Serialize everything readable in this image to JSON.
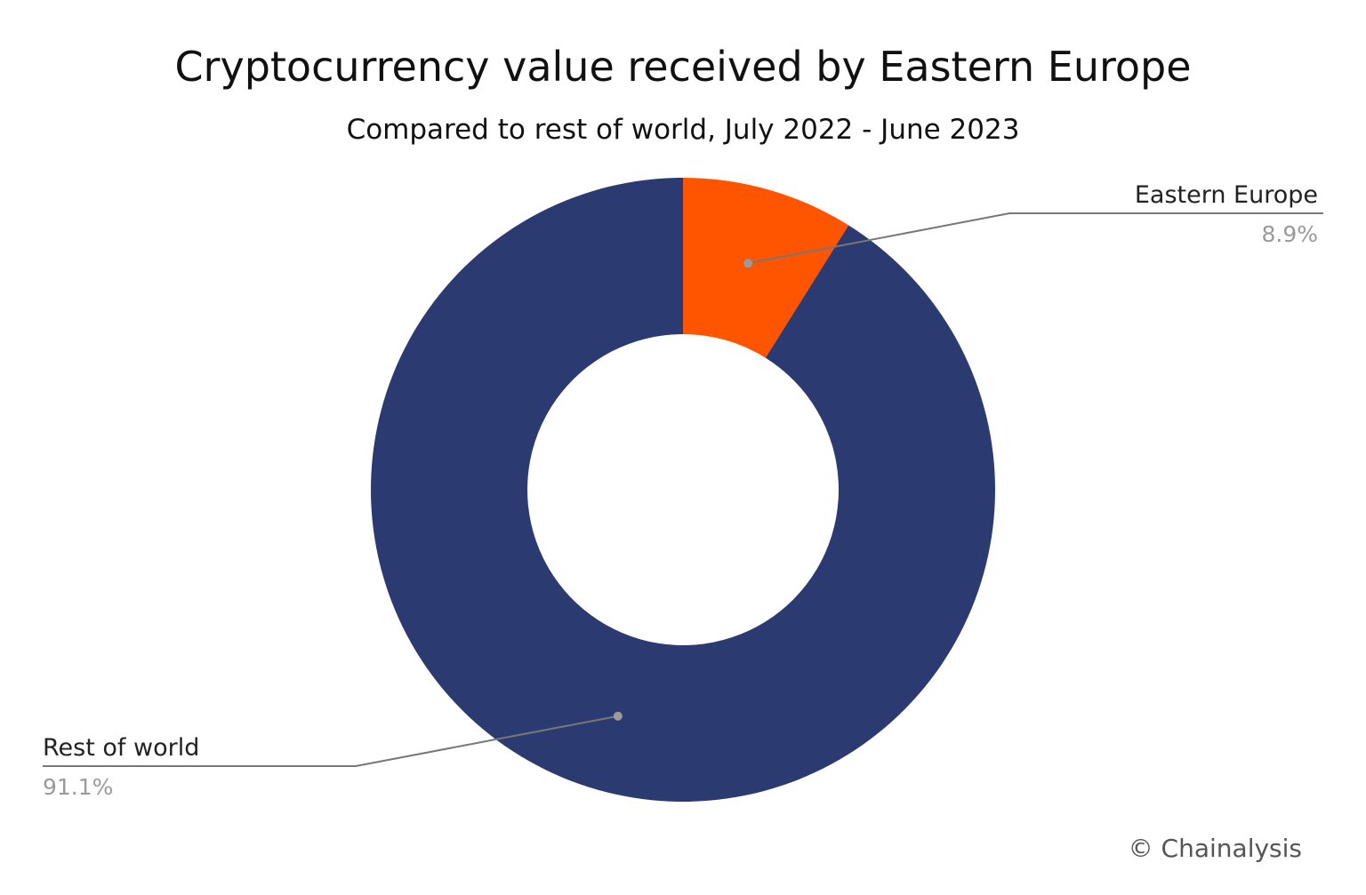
{
  "chart_data": {
    "type": "pie",
    "title": "Cryptocurrency value received by Eastern Europe",
    "subtitle": "Compared to rest of world, July 2022 - June 2023",
    "slices": [
      {
        "label": "Eastern Europe",
        "value": 8.9,
        "value_label": "8.9%",
        "color": "#ff5400"
      },
      {
        "label": "Rest of world",
        "value": 91.1,
        "value_label": "91.1%",
        "color": "#2b3a70"
      }
    ],
    "donut": true,
    "legend": "none"
  },
  "credit": "© Chainalysis",
  "colors": {
    "label": "#222222",
    "value_label": "#9a9a9a",
    "leader_line": "#777777"
  }
}
